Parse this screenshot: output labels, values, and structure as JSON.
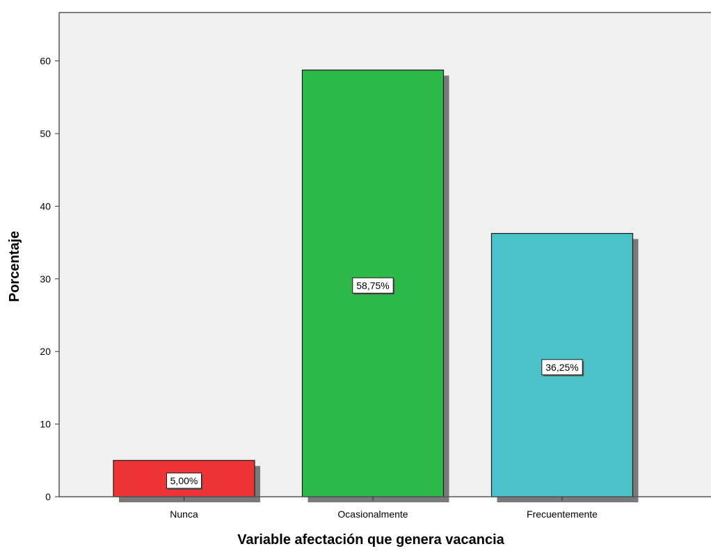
{
  "chart_data": {
    "type": "bar",
    "xlabel": "Variable afectación que genera vacancia",
    "ylabel": "Porcentaje",
    "categories": [
      "Nunca",
      "Ocasionalmente",
      "Frecuentemente"
    ],
    "values": [
      5.0,
      58.75,
      36.25
    ],
    "data_labels": [
      "5,00%",
      "58,75%",
      "36,25%"
    ],
    "colors": [
      "#ee3437",
      "#2db84a",
      "#4bc2c7"
    ],
    "ylim": [
      0,
      66
    ],
    "yticks": [
      0,
      10,
      20,
      30,
      40,
      50,
      60
    ],
    "grid": false,
    "plot_background": "#f0f0f0",
    "bar_shadow": true
  }
}
